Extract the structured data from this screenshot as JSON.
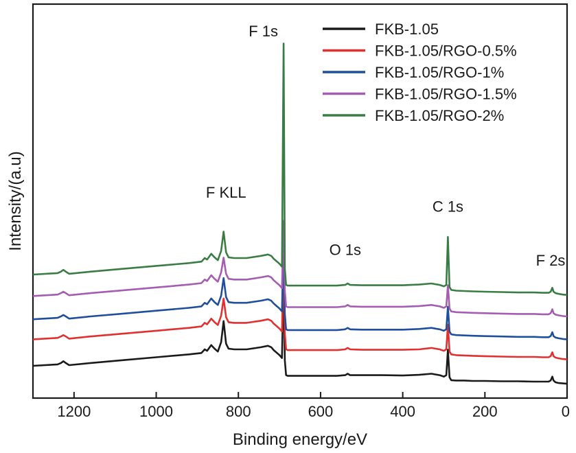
{
  "chart_data": {
    "type": "line",
    "title": "",
    "xlabel": "Binding energy/eV",
    "ylabel": "Intensity/(a.u)",
    "xlim": [
      1300,
      0
    ],
    "x_reversed": true,
    "ylim": [
      0,
      110
    ],
    "xticks": [
      1200,
      1000,
      800,
      600,
      400,
      200,
      0
    ],
    "x_tick_labels": [
      "1200",
      "1000",
      "800",
      "600",
      "400",
      "200",
      "0"
    ],
    "grid": false,
    "legend_position": "top-right",
    "x": [
      1300,
      1240,
      1232,
      1226,
      1220,
      1212,
      1160,
      1080,
      1000,
      920,
      890,
      882,
      876,
      866,
      858,
      850,
      842,
      836,
      830,
      824,
      810,
      780,
      745,
      728,
      720,
      714,
      706,
      700,
      694,
      690,
      687,
      684,
      680,
      640,
      600,
      560,
      540,
      534,
      528,
      500,
      450,
      400,
      360,
      330,
      320,
      310,
      300,
      294,
      290,
      286,
      282,
      270,
      250,
      230,
      200,
      160,
      120,
      80,
      60,
      45,
      40,
      36,
      33,
      28,
      20,
      10,
      0
    ],
    "series": [
      {
        "name": "FKB-1.05",
        "color": "#1a1a1a",
        "values": [
          9.0,
          9.4,
          9.8,
          10.3,
          9.8,
          9.2,
          9.8,
          10.6,
          11.4,
          12.2,
          12.6,
          13.6,
          13.2,
          14.8,
          13.8,
          13.0,
          15.6,
          21.5,
          15.2,
          13.8,
          13.6,
          13.6,
          14.2,
          14.6,
          14.2,
          13.4,
          12.6,
          12.0,
          11.2,
          33.0,
          10.5,
          6.4,
          6.2,
          6.2,
          6.2,
          6.2,
          6.4,
          6.8,
          6.4,
          6.4,
          6.4,
          6.3,
          6.5,
          6.8,
          6.6,
          6.4,
          6.0,
          6.4,
          13.5,
          5.8,
          5.0,
          4.9,
          4.9,
          4.8,
          4.8,
          4.7,
          4.7,
          4.6,
          4.6,
          4.6,
          4.9,
          6.0,
          4.9,
          4.4,
          4.2,
          4.1,
          4.0
        ]
      },
      {
        "name": "FKB-1.05/RGO-0.5%",
        "color": "#e03030",
        "values": [
          16.4,
          16.8,
          17.2,
          17.6,
          17.2,
          16.6,
          17.2,
          18.0,
          18.8,
          19.6,
          20.0,
          21.0,
          20.6,
          22.2,
          21.2,
          20.4,
          23.0,
          27.8,
          22.6,
          21.2,
          21.0,
          21.0,
          21.6,
          22.0,
          21.6,
          20.8,
          20.0,
          19.4,
          18.6,
          40.0,
          18.0,
          13.6,
          13.4,
          13.4,
          13.4,
          13.4,
          13.6,
          14.0,
          13.6,
          13.5,
          13.5,
          13.5,
          13.6,
          14.0,
          13.8,
          13.6,
          13.2,
          13.6,
          20.5,
          13.0,
          12.2,
          12.0,
          11.9,
          11.8,
          11.7,
          11.6,
          11.5,
          11.5,
          11.4,
          11.4,
          11.7,
          12.8,
          11.7,
          11.3,
          11.1,
          10.9,
          10.8
        ]
      },
      {
        "name": "FKB-1.05/RGO-1%",
        "color": "#1f4e9c",
        "values": [
          22.0,
          22.4,
          22.8,
          23.2,
          22.8,
          22.2,
          22.8,
          23.6,
          24.4,
          25.2,
          25.6,
          26.6,
          26.2,
          27.8,
          26.8,
          26.0,
          28.6,
          33.5,
          28.2,
          26.8,
          26.6,
          26.6,
          27.2,
          27.6,
          27.2,
          26.4,
          25.6,
          25.0,
          24.2,
          44.5,
          23.5,
          19.2,
          19.0,
          19.0,
          19.0,
          19.0,
          19.2,
          19.6,
          19.2,
          19.1,
          19.1,
          19.1,
          19.3,
          19.6,
          19.4,
          19.2,
          18.8,
          19.2,
          25.5,
          18.6,
          17.8,
          17.6,
          17.5,
          17.4,
          17.3,
          17.2,
          17.1,
          17.1,
          17.0,
          17.0,
          17.3,
          18.4,
          17.3,
          16.9,
          16.7,
          16.5,
          16.4
        ]
      },
      {
        "name": "FKB-1.05/RGO-1.5%",
        "color": "#a45db0",
        "values": [
          28.5,
          28.9,
          29.3,
          29.7,
          29.3,
          28.7,
          29.3,
          30.1,
          30.9,
          31.7,
          32.1,
          33.1,
          32.7,
          34.3,
          33.3,
          32.5,
          35.1,
          39.2,
          34.7,
          33.3,
          33.1,
          33.1,
          33.7,
          34.1,
          33.7,
          32.9,
          32.1,
          31.5,
          30.7,
          49.5,
          30.0,
          25.6,
          25.4,
          25.4,
          25.4,
          25.4,
          25.6,
          26.0,
          25.6,
          25.5,
          25.5,
          25.5,
          25.7,
          26.0,
          25.8,
          25.6,
          25.2,
          25.6,
          31.5,
          25.0,
          24.2,
          24.0,
          23.9,
          23.8,
          23.7,
          23.6,
          23.5,
          23.5,
          23.4,
          23.4,
          23.7,
          24.8,
          23.7,
          23.3,
          23.1,
          22.9,
          22.8
        ]
      },
      {
        "name": "FKB-1.05/RGO-2%",
        "color": "#3a7d44",
        "values": [
          34.5,
          34.9,
          35.3,
          35.8,
          35.3,
          34.7,
          35.3,
          36.1,
          36.9,
          37.7,
          38.1,
          39.1,
          38.7,
          40.3,
          39.3,
          38.5,
          41.1,
          46.5,
          40.7,
          39.3,
          39.1,
          39.1,
          39.7,
          40.1,
          39.7,
          38.9,
          38.1,
          37.5,
          36.7,
          99.0,
          36.0,
          31.6,
          31.4,
          31.4,
          31.4,
          31.4,
          31.6,
          32.0,
          31.6,
          31.5,
          31.5,
          31.5,
          31.7,
          32.0,
          31.8,
          31.6,
          31.2,
          31.6,
          45.0,
          31.0,
          30.2,
          30.0,
          29.9,
          29.8,
          29.7,
          29.6,
          29.5,
          29.5,
          29.4,
          29.4,
          29.7,
          30.8,
          29.7,
          29.3,
          29.1,
          28.9,
          28.8
        ]
      }
    ],
    "annotations": [
      {
        "text": "F 1s",
        "x": 690,
        "y": 101
      },
      {
        "text": "F KLL",
        "x": 830,
        "y": 56
      },
      {
        "text": "C 1s",
        "x": 290,
        "y": 52
      },
      {
        "text": "O 1s",
        "x": 540,
        "y": 40
      },
      {
        "text": "F 2s",
        "x": 35,
        "y": 37
      }
    ]
  }
}
